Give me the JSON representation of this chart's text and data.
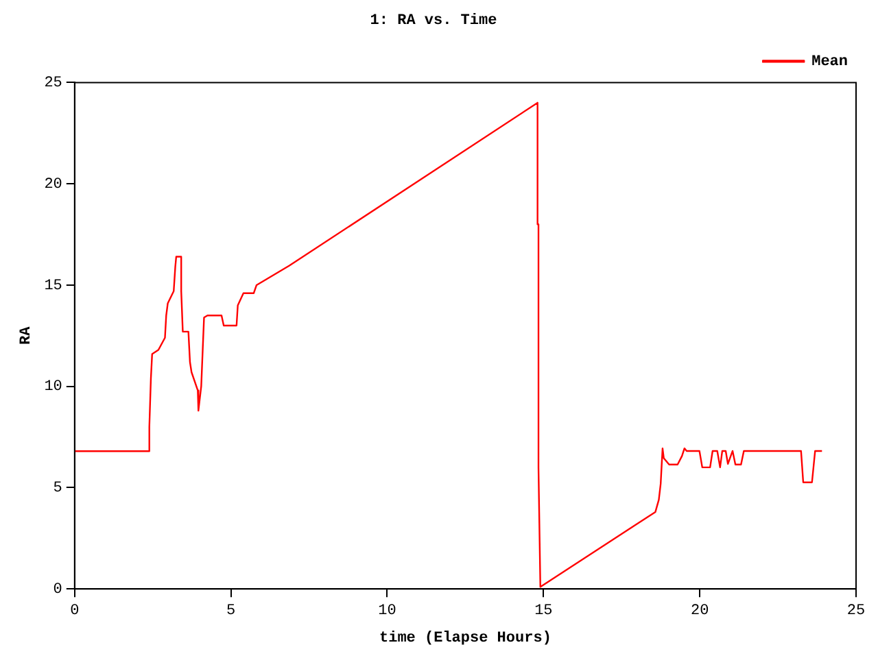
{
  "chart_data": {
    "type": "line",
    "title": "1: RA vs. Time",
    "xlabel": "time (Elapse Hours)",
    "ylabel": "RA",
    "xlim": [
      0,
      25
    ],
    "xticks": [
      0,
      5,
      10,
      15,
      20,
      25
    ],
    "ylim": [
      0,
      25
    ],
    "yticks": [
      0,
      5,
      10,
      15,
      20,
      25
    ],
    "grid": false,
    "legend": "top right",
    "marker": "none",
    "line_style": "solid",
    "series": [
      {
        "name": "Mean",
        "color": "#ff0000",
        "x": [
          0,
          2.39,
          2.39,
          2.44,
          2.48,
          2.68,
          2.89,
          2.93,
          2.98,
          3.17,
          3.22,
          3.25,
          3.41,
          3.41,
          3.46,
          3.64,
          3.69,
          3.74,
          3.94,
          3.96,
          4.05,
          4.14,
          4.25,
          4.7,
          4.77,
          5.18,
          5.22,
          5.4,
          5.73,
          5.82,
          6.87,
          14.81,
          14.81,
          14.84,
          14.84,
          14.9,
          18.58,
          18.69,
          18.75,
          18.81,
          18.85,
          19.02,
          19.29,
          19.43,
          19.51,
          19.58,
          19.99,
          20.08,
          20.33,
          20.41,
          20.56,
          20.65,
          20.72,
          20.83,
          20.9,
          21.05,
          21.14,
          21.32,
          21.41,
          23.24,
          23.31,
          23.59,
          23.69,
          23.91
        ],
        "values": [
          6.8,
          6.8,
          8.0,
          10.4,
          11.6,
          11.8,
          12.4,
          13.5,
          14.1,
          14.7,
          15.9,
          16.4,
          16.4,
          14.7,
          12.7,
          12.7,
          11.2,
          10.7,
          9.8,
          8.8,
          10.0,
          13.4,
          13.5,
          13.5,
          13.0,
          13.0,
          14.0,
          14.6,
          14.6,
          15.0,
          15.96,
          24.0,
          18.0,
          18.0,
          6.0,
          0.1,
          3.8,
          4.4,
          5.2,
          6.94,
          6.45,
          6.14,
          6.14,
          6.56,
          6.94,
          6.81,
          6.81,
          6.0,
          6.0,
          6.81,
          6.81,
          6.0,
          6.81,
          6.81,
          6.17,
          6.81,
          6.14,
          6.14,
          6.81,
          6.81,
          5.26,
          5.26,
          6.81,
          6.81
        ]
      }
    ]
  }
}
